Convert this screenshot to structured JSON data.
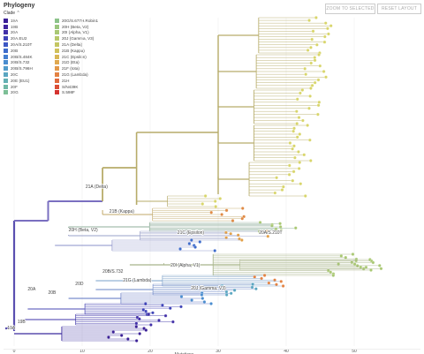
{
  "header": {
    "title": "Phylogeny",
    "clade_toggle": "Clade ⌃",
    "zoom_button": "ZOOM TO SELECTED",
    "reset_button": "RESET LAYOUT"
  },
  "legend_col1": [
    {
      "label": "19A",
      "color": "#3a1f96"
    },
    {
      "label": "19B",
      "color": "#40269e"
    },
    {
      "label": "20A",
      "color": "#4230a8"
    },
    {
      "label": "20A.EU2",
      "color": "#3f44b8"
    },
    {
      "label": "20A/S.210T",
      "color": "#3d58c4"
    },
    {
      "label": "20B",
      "color": "#3e6ccb"
    },
    {
      "label": "20B/S.484K",
      "color": "#447ed0"
    },
    {
      "label": "20B/S.732",
      "color": "#4a8dcf"
    },
    {
      "label": "20B/S.796H",
      "color": "#519bca"
    },
    {
      "label": "20C",
      "color": "#5aa6c1"
    },
    {
      "label": "20E (EU1)",
      "color": "#64b0b4"
    },
    {
      "label": "20F",
      "color": "#70b8a6"
    },
    {
      "label": "20G",
      "color": "#7dbf97"
    }
  ],
  "legend_col2": [
    {
      "label": "20G/S.677H.Robin1",
      "color": "#8cc38a"
    },
    {
      "label": "20H (Beta, V2)",
      "color": "#9ac67e"
    },
    {
      "label": "20I (Alpha, V1)",
      "color": "#a9c873"
    },
    {
      "label": "20J (Gamma, V3)",
      "color": "#b7c86a"
    },
    {
      "label": "21A (Delta)",
      "color": "#c4c662"
    },
    {
      "label": "21B (Kappa)",
      "color": "#d0c15b"
    },
    {
      "label": "21C (Epsilon)",
      "color": "#d9b755"
    },
    {
      "label": "21D (Eta)",
      "color": "#e0a94f"
    },
    {
      "label": "21F (Iota)",
      "color": "#e39849"
    },
    {
      "label": "21G (Lambda)",
      "color": "#e38242"
    },
    {
      "label": "21H",
      "color": "#e0693c"
    },
    {
      "label": "S/N439K",
      "color": "#db4e35"
    },
    {
      "label": "S.598F",
      "color": "#d5332f"
    }
  ],
  "tree": {
    "clade_labels": [
      {
        "label": "21A (Delta)",
        "x": 10.5,
        "y": 213
      },
      {
        "label": "21B (Kappa)",
        "x": 14,
        "y": 241
      },
      {
        "label": "20H (Beta, V2)",
        "x": 8,
        "y": 262
      },
      {
        "label": "21C (Epsilon)",
        "x": 24,
        "y": 265
      },
      {
        "label": "20A/S.210T",
        "x": 36,
        "y": 265
      },
      {
        "label": "20I (Alpha, V1)",
        "x": 23,
        "y": 302
      },
      {
        "label": "20B/S.732",
        "x": 13,
        "y": 309
      },
      {
        "label": "21G (Lambda)",
        "x": 16,
        "y": 319
      },
      {
        "label": "20D",
        "x": 9,
        "y": 323
      },
      {
        "label": "20J (Gamma, V3)",
        "x": 26,
        "y": 328
      },
      {
        "label": "20A",
        "x": 2,
        "y": 329
      },
      {
        "label": "20B",
        "x": 5,
        "y": 333
      },
      {
        "label": "19B",
        "x": 0.5,
        "y": 366
      },
      {
        "label": "19A",
        "x": -1,
        "y": 373
      }
    ]
  },
  "x_axis": {
    "label": "Mutations",
    "ticks": [
      "0",
      "10",
      "20",
      "30",
      "40",
      "50"
    ]
  }
}
